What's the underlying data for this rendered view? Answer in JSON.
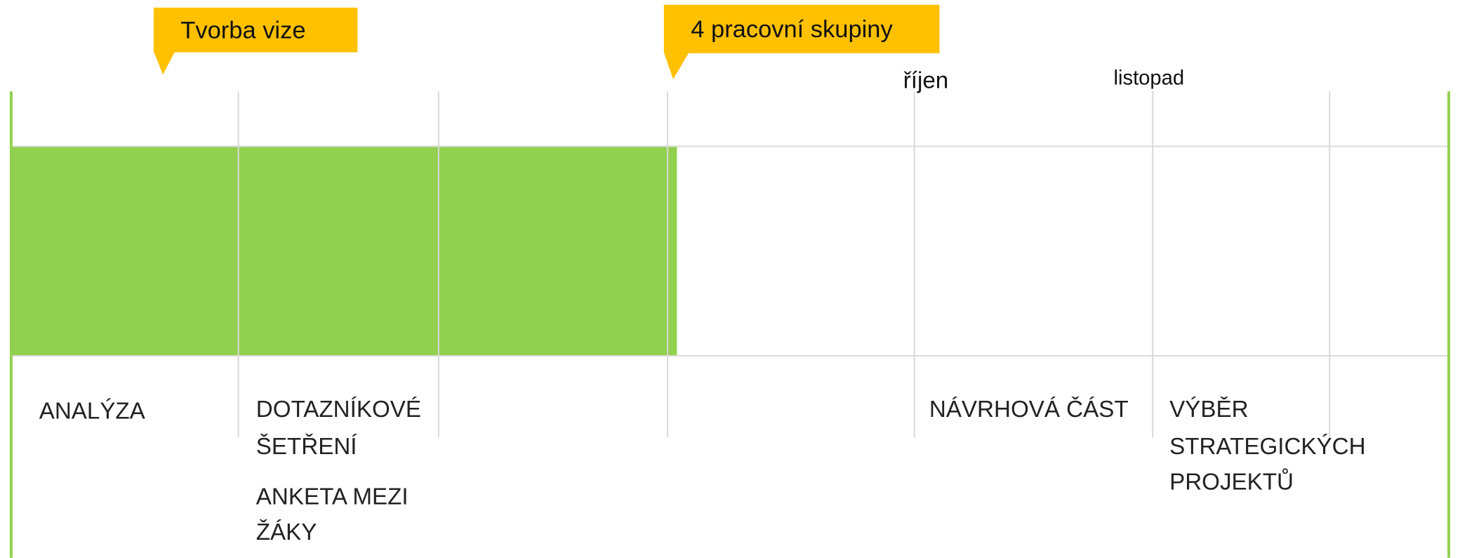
{
  "callouts": [
    "Tvorba vize",
    "4 pracovní skupiny"
  ],
  "months": [
    "říjen",
    "listopad"
  ],
  "phases": [
    {
      "lines": [
        "ANALÝZA"
      ]
    },
    {
      "lines": [
        "DOTAZNÍKOVÉ",
        "ŠETŘENÍ"
      ]
    },
    {
      "lines": [
        "ANKETA MEZI",
        "ŽÁKY"
      ]
    },
    {
      "lines": [
        "NÁVRHOVÁ ČÁST"
      ]
    },
    {
      "lines": [
        "VÝBĚR",
        "STRATEGICKÝCH",
        "PROJEKTŮ"
      ]
    }
  ]
}
